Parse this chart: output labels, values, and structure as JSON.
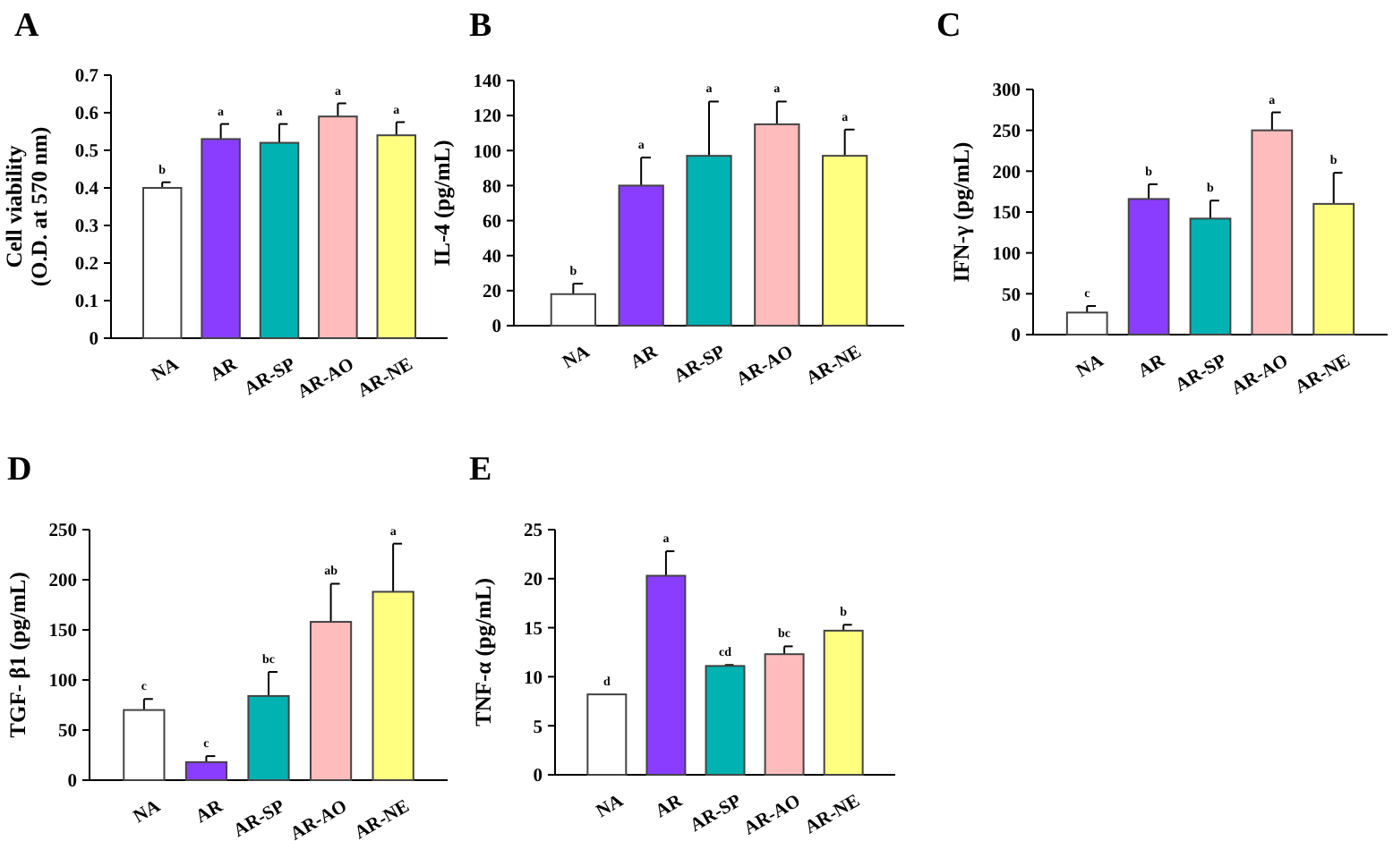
{
  "chart_data": [
    {
      "type": "bar",
      "title": "A",
      "ylabel": "Cell viability\n(O.D. at 570 nm)",
      "categories": [
        "NA",
        "AR",
        "AR-SP",
        "AR-AO",
        "AR-NE"
      ],
      "values": [
        0.4,
        0.53,
        0.52,
        0.59,
        0.54
      ],
      "errors": [
        0.015,
        0.04,
        0.05,
        0.035,
        0.035
      ],
      "colors": [
        "#ffffff",
        "#8b3dff",
        "#00b2b2",
        "#ffbcbc",
        "#ffff80"
      ],
      "ylim": [
        0,
        0.7
      ],
      "yticks": [
        0,
        0.1,
        0.2,
        0.3,
        0.4,
        0.5,
        0.6,
        0.7
      ],
      "annotations": [
        "b",
        "a",
        "a",
        "a",
        "a"
      ]
    },
    {
      "type": "bar",
      "title": "B",
      "ylabel": "IL-4 (pg/mL)",
      "categories": [
        "NA",
        "AR",
        "AR-SP",
        "AR-AO",
        "AR-NE"
      ],
      "values": [
        18,
        80,
        97,
        115,
        97
      ],
      "errors": [
        6,
        16,
        31,
        13,
        15
      ],
      "colors": [
        "#ffffff",
        "#8b3dff",
        "#00b2b2",
        "#ffbcbc",
        "#ffff80"
      ],
      "ylim": [
        0,
        140
      ],
      "yticks": [
        0,
        20,
        40,
        60,
        80,
        100,
        120,
        140
      ],
      "annotations": [
        "b",
        "a",
        "a",
        "a",
        "a"
      ]
    },
    {
      "type": "bar",
      "title": "C",
      "ylabel": "IFN-γ (pg/mL)",
      "categories": [
        "NA",
        "AR",
        "AR-SP",
        "AR-AO",
        "AR-NE"
      ],
      "values": [
        27,
        166,
        142,
        250,
        160
      ],
      "errors": [
        8,
        18,
        22,
        22,
        38
      ],
      "colors": [
        "#ffffff",
        "#8b3dff",
        "#00b2b2",
        "#ffbcbc",
        "#ffff80"
      ],
      "ylim": [
        0,
        300
      ],
      "yticks": [
        0,
        50,
        100,
        150,
        200,
        250,
        300
      ],
      "annotations": [
        "c",
        "b",
        "b",
        "a",
        "b"
      ]
    },
    {
      "type": "bar",
      "title": "D",
      "ylabel": "TGF- β1 (pg/mL)",
      "categories": [
        "NA",
        "AR",
        "AR-SP",
        "AR-AO",
        "AR-NE"
      ],
      "values": [
        70,
        18,
        84,
        158,
        188
      ],
      "errors": [
        11,
        6,
        24,
        38,
        48
      ],
      "colors": [
        "#ffffff",
        "#8b3dff",
        "#00b2b2",
        "#ffbcbc",
        "#ffff80"
      ],
      "ylim": [
        0,
        250
      ],
      "yticks": [
        0,
        50,
        100,
        150,
        200,
        250
      ],
      "annotations": [
        "c",
        "c",
        "bc",
        "ab",
        "a"
      ]
    },
    {
      "type": "bar",
      "title": "E",
      "ylabel": "TNF-α (pg/mL)",
      "categories": [
        "NA",
        "AR",
        "AR-SP",
        "AR-AO",
        "AR-NE"
      ],
      "values": [
        8.2,
        20.3,
        11.1,
        12.3,
        14.7
      ],
      "errors": [
        null,
        2.5,
        0.1,
        0.8,
        0.6
      ],
      "colors": [
        "#ffffff",
        "#8b3dff",
        "#00b2b2",
        "#ffbcbc",
        "#ffff80"
      ],
      "ylim": [
        0,
        25
      ],
      "yticks": [
        0,
        5,
        10,
        15,
        20,
        25
      ],
      "annotations": [
        "d",
        "a",
        "cd",
        "bc",
        "b"
      ]
    }
  ]
}
